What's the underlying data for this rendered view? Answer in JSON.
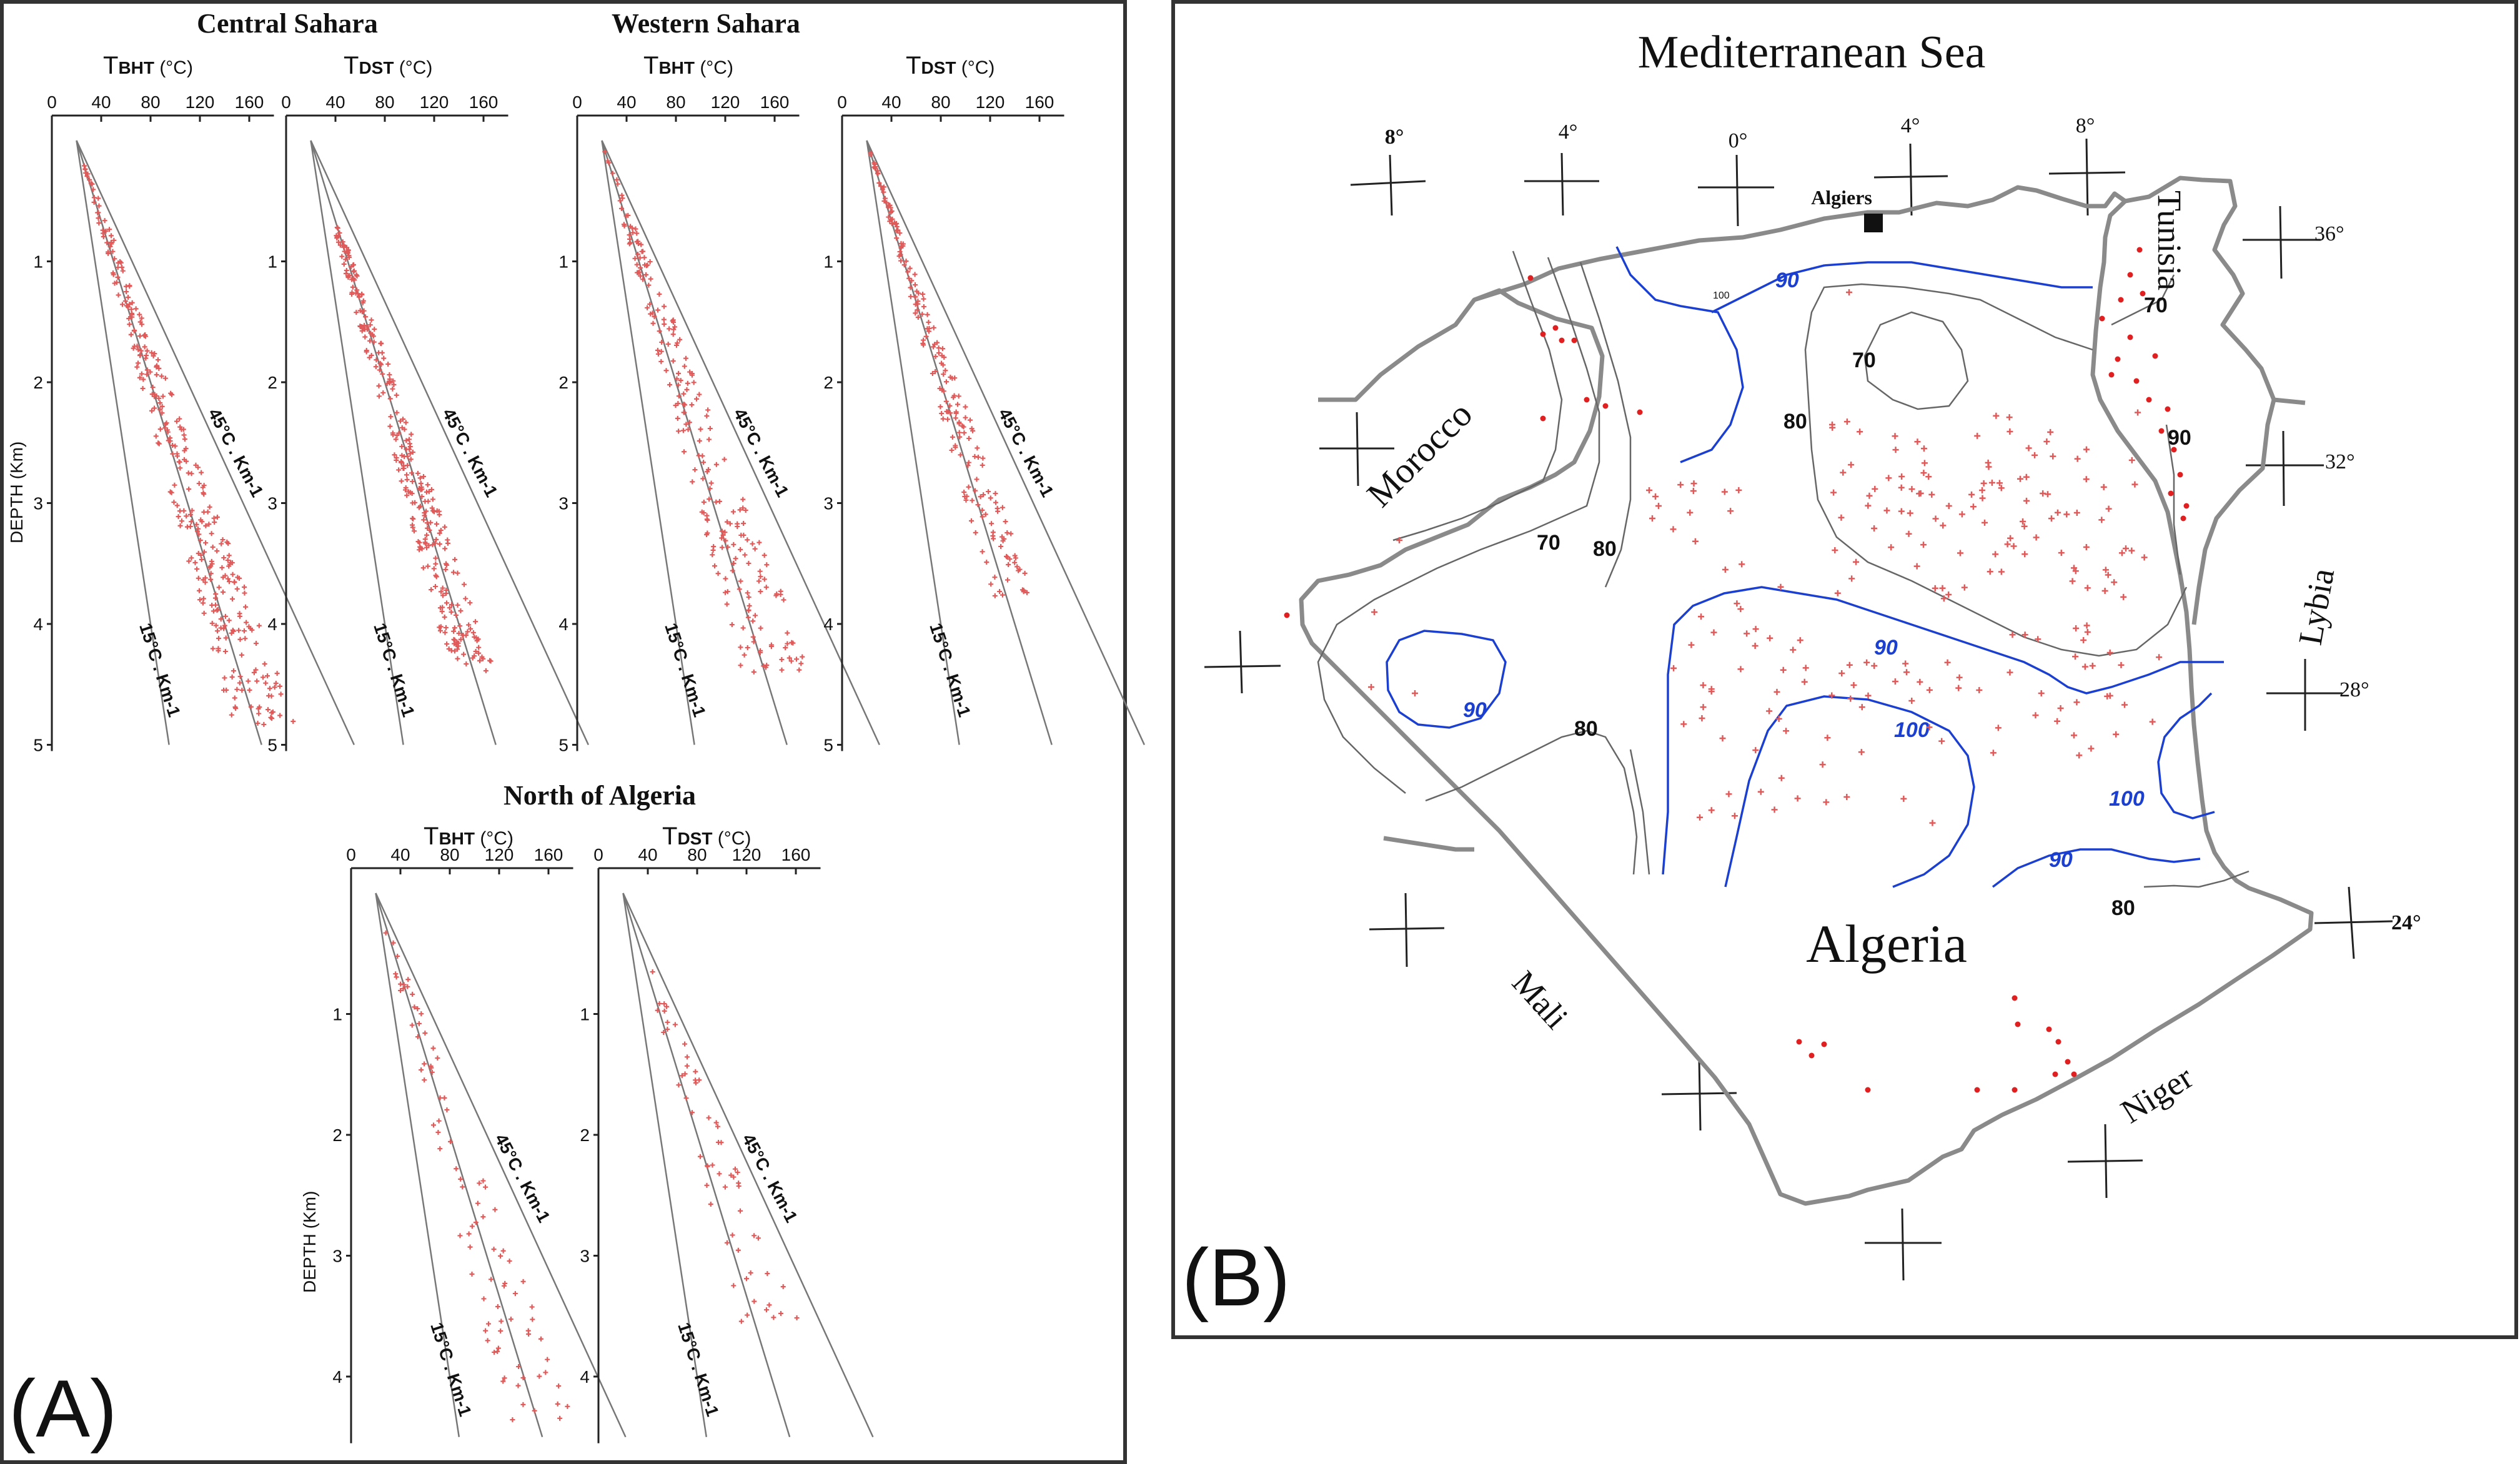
{
  "panel_a": {
    "letter": "(A)",
    "groups": [
      {
        "title": "Central Sahara",
        "plots": [
          {
            "key": "bht",
            "sym": "T",
            "sub": "BHT",
            "unit": " (°C)"
          },
          {
            "key": "dst",
            "sym": "T",
            "sub": "DST",
            "unit": " (°C)"
          }
        ]
      },
      {
        "title": "Western Sahara",
        "plots": [
          {
            "key": "bht",
            "sym": "T",
            "sub": "BHT",
            "unit": " (°C)"
          },
          {
            "key": "dst",
            "sym": "T",
            "sub": "DST",
            "unit": " (°C)"
          }
        ]
      },
      {
        "title": "North of Algeria",
        "plots": [
          {
            "key": "bht",
            "sym": "T",
            "sub": "BHT",
            "unit": " (°C)"
          },
          {
            "key": "dst",
            "sym": "T",
            "sub": "DST",
            "unit": " (°C)"
          }
        ]
      }
    ],
    "x_ticks": [
      "0",
      "40",
      "80",
      "120",
      "160"
    ],
    "y_ticks_sahara": [
      "1",
      "2",
      "3",
      "4",
      "5"
    ],
    "y_ticks_north": [
      "1",
      "2",
      "3",
      "4"
    ],
    "ylabel": "DEPTH (Km)",
    "gradient_hi": "45°C . Km-1",
    "gradient_lo": "15°C . Km-1",
    "surface_temperature_c": 20,
    "gradients_c_per_km": [
      15,
      30,
      45
    ],
    "marker_color": "#e05a5a"
  },
  "panel_b": {
    "letter": "(B)",
    "sea": "Mediterranean Sea",
    "city": "Algiers",
    "countries": {
      "algeria": "Algeria",
      "morocco": "Morocco",
      "tunisia": "Tunisia",
      "lybia": "Lybia",
      "mali": "Mali",
      "niger": "Niger"
    },
    "lon_labels": [
      "8°",
      "4°",
      "0°",
      "4°",
      "8°"
    ],
    "lat_labels": [
      "36°",
      "32°",
      "28°",
      "24°"
    ],
    "isotherm_labels": {
      "g70a": "70",
      "g70b": "70",
      "g70c": "70",
      "g80a": "80",
      "g80b": "80",
      "g80c": "80",
      "g80d": "80",
      "g90": "90",
      "b90a": "90",
      "b90b": "90",
      "b90c": "90",
      "b90d": "90",
      "b100a": "100",
      "b100b": "100",
      "b100c": "100"
    },
    "colors": {
      "isotherm_low": "#666666",
      "isotherm_high": "#1b3fd0",
      "border": "#8a8a8a",
      "well": "#e02020"
    }
  }
}
